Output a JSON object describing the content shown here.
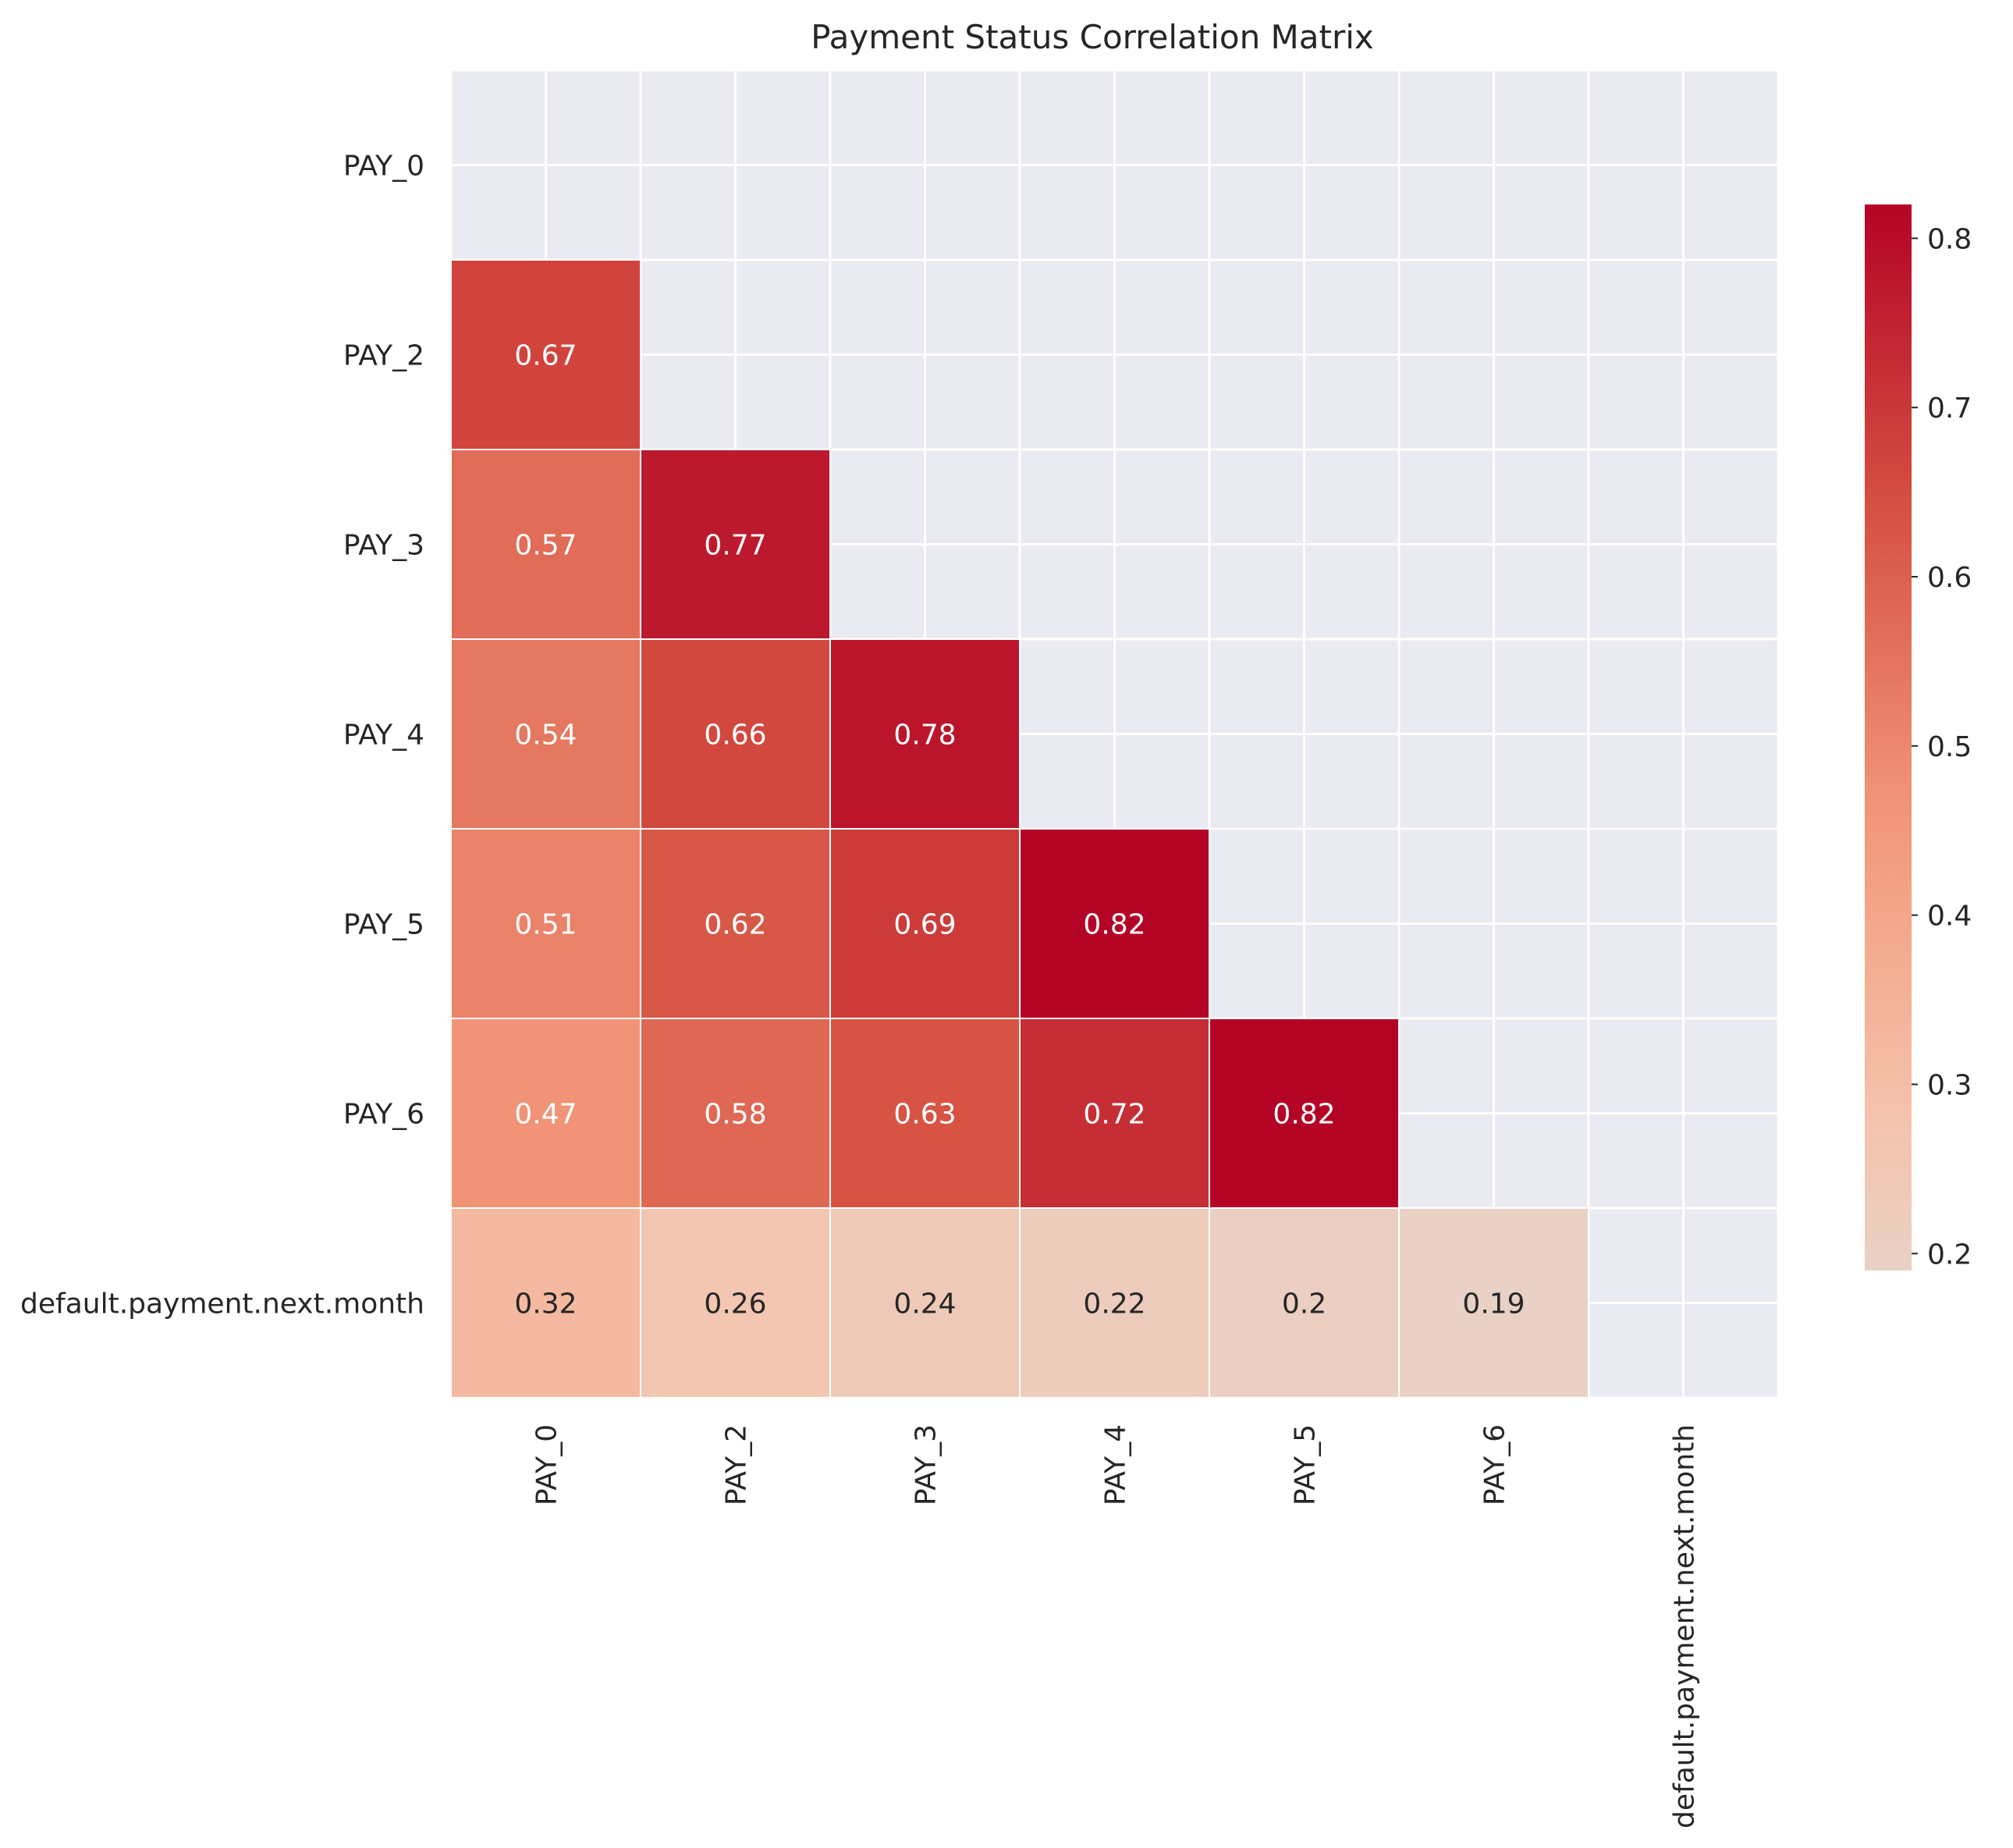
{
  "chart_data": {
    "type": "heatmap",
    "title": "Payment Status Correlation Matrix",
    "labels": [
      "PAY_0",
      "PAY_2",
      "PAY_3",
      "PAY_4",
      "PAY_5",
      "PAY_6",
      "default.payment.next.month"
    ],
    "matrix": [
      [
        null,
        null,
        null,
        null,
        null,
        null,
        null
      ],
      [
        0.67,
        null,
        null,
        null,
        null,
        null,
        null
      ],
      [
        0.57,
        0.77,
        null,
        null,
        null,
        null,
        null
      ],
      [
        0.54,
        0.66,
        0.78,
        null,
        null,
        null,
        null
      ],
      [
        0.51,
        0.62,
        0.69,
        0.82,
        null,
        null,
        null
      ],
      [
        0.47,
        0.58,
        0.63,
        0.72,
        0.82,
        null,
        null
      ],
      [
        0.32,
        0.26,
        0.24,
        0.22,
        0.2,
        0.19,
        null
      ]
    ],
    "mask": "upper-triangle-including-diagonal",
    "colormap": "coolwarm",
    "vmin": 0.19,
    "vmax": 0.82,
    "colorbar_ticks": [
      "0.2",
      "0.3",
      "0.4",
      "0.5",
      "0.6",
      "0.7",
      "0.8"
    ],
    "grid": true,
    "background_color": "#eaeaf2"
  }
}
